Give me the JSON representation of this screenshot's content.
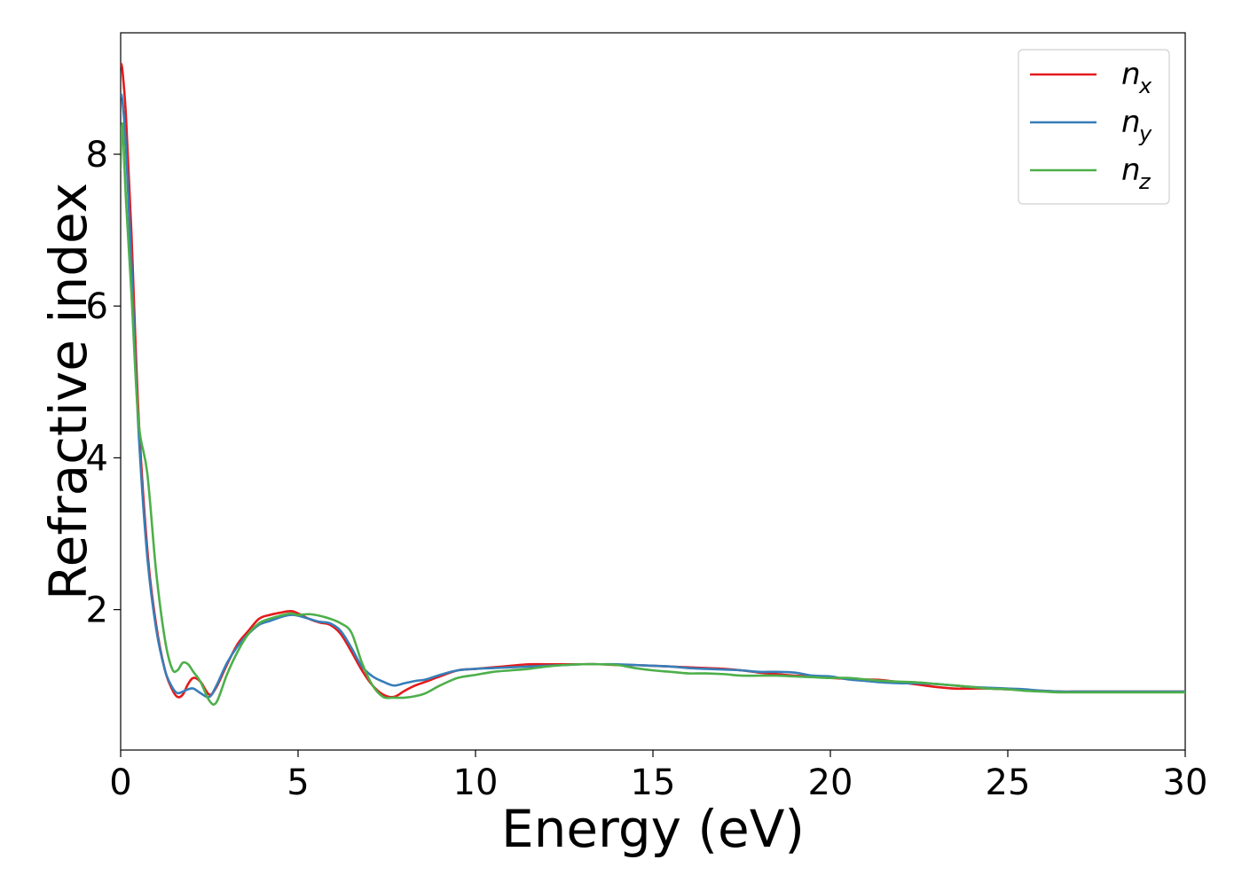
{
  "chart_data": {
    "type": "line",
    "title": "",
    "xlabel": "Energy (eV)",
    "ylabel": "Refractive index",
    "xlim": [
      0,
      30
    ],
    "ylim": [
      0.15,
      9.6
    ],
    "xticks": [
      0,
      5,
      10,
      15,
      20,
      25,
      30
    ],
    "xtick_labels": [
      "0",
      "5",
      "10",
      "15",
      "20",
      "25",
      "30"
    ],
    "yticks": [
      2,
      4,
      6,
      8
    ],
    "ytick_labels": [
      "2",
      "4",
      "6",
      "8"
    ],
    "grid": false,
    "legend_position": "top-right",
    "series": [
      {
        "name": "n_x",
        "legend_base": "n",
        "legend_sub": "x",
        "color": "#e41a1c",
        "x": [
          0,
          0.05,
          0.15,
          0.3,
          0.5,
          0.75,
          1.0,
          1.25,
          1.45,
          1.6,
          1.75,
          1.9,
          2.05,
          2.25,
          2.5,
          2.7,
          3.0,
          3.3,
          3.6,
          3.9,
          4.2,
          4.5,
          4.8,
          5.0,
          5.3,
          5.6,
          5.9,
          6.2,
          6.5,
          6.8,
          7.1,
          7.4,
          7.7,
          8.0,
          8.3,
          8.6,
          9.0,
          9.5,
          10.0,
          10.5,
          11.0,
          11.5,
          12.0,
          12.5,
          13.0,
          13.5,
          14.0,
          14.5,
          15.0,
          15.5,
          16.0,
          16.5,
          17.0,
          17.5,
          18.0,
          18.5,
          19.0,
          19.5,
          20.0,
          20.5,
          21.0,
          21.5,
          22.0,
          22.5,
          23.0,
          23.5,
          24.0,
          24.5,
          25.0,
          25.5,
          26.0,
          26.5,
          27.0,
          27.5,
          28.0,
          28.5,
          29.0,
          29.5,
          30.0
        ],
        "y": [
          9.2,
          9.1,
          8.5,
          7.0,
          4.6,
          2.8,
          1.8,
          1.2,
          0.95,
          0.85,
          0.88,
          1.02,
          1.1,
          1.05,
          0.88,
          0.98,
          1.28,
          1.55,
          1.72,
          1.88,
          1.93,
          1.96,
          1.98,
          1.95,
          1.88,
          1.83,
          1.8,
          1.68,
          1.45,
          1.2,
          1.0,
          0.88,
          0.85,
          0.93,
          1.0,
          1.05,
          1.12,
          1.2,
          1.22,
          1.24,
          1.26,
          1.28,
          1.28,
          1.28,
          1.28,
          1.28,
          1.27,
          1.27,
          1.26,
          1.25,
          1.24,
          1.23,
          1.22,
          1.2,
          1.17,
          1.15,
          1.13,
          1.12,
          1.1,
          1.09,
          1.08,
          1.07,
          1.04,
          1.01,
          0.98,
          0.96,
          0.96,
          0.96,
          0.95,
          0.94,
          0.93,
          0.92,
          0.92,
          0.92,
          0.92,
          0.92,
          0.92,
          0.92,
          0.92
        ]
      },
      {
        "name": "n_y",
        "legend_base": "n",
        "legend_sub": "y",
        "color": "#377eb8",
        "x": [
          0,
          0.05,
          0.15,
          0.3,
          0.5,
          0.75,
          1.0,
          1.25,
          1.45,
          1.6,
          1.75,
          1.9,
          2.05,
          2.25,
          2.5,
          2.7,
          3.0,
          3.3,
          3.6,
          3.9,
          4.2,
          4.5,
          4.8,
          5.0,
          5.3,
          5.6,
          5.9,
          6.2,
          6.5,
          6.8,
          7.1,
          7.4,
          7.7,
          8.0,
          8.3,
          8.6,
          9.0,
          9.5,
          10.0,
          10.5,
          11.0,
          11.5,
          12.0,
          12.5,
          13.0,
          13.5,
          14.0,
          14.5,
          15.0,
          15.5,
          16.0,
          16.5,
          17.0,
          17.5,
          18.0,
          18.5,
          19.0,
          19.5,
          20.0,
          20.5,
          21.0,
          21.5,
          22.0,
          22.5,
          23.0,
          23.5,
          24.0,
          24.5,
          25.0,
          25.5,
          26.0,
          26.5,
          27.0,
          27.5,
          28.0,
          28.5,
          29.0,
          29.5,
          30.0
        ],
        "y": [
          8.8,
          8.7,
          8.1,
          6.6,
          4.4,
          2.7,
          1.75,
          1.2,
          0.98,
          0.9,
          0.92,
          0.95,
          0.96,
          0.9,
          0.85,
          1.0,
          1.3,
          1.52,
          1.68,
          1.8,
          1.85,
          1.9,
          1.93,
          1.92,
          1.88,
          1.84,
          1.82,
          1.72,
          1.5,
          1.25,
          1.12,
          1.05,
          1.0,
          1.03,
          1.06,
          1.08,
          1.14,
          1.2,
          1.22,
          1.23,
          1.24,
          1.25,
          1.26,
          1.27,
          1.28,
          1.28,
          1.28,
          1.27,
          1.26,
          1.25,
          1.23,
          1.22,
          1.21,
          1.2,
          1.18,
          1.18,
          1.17,
          1.13,
          1.12,
          1.08,
          1.06,
          1.04,
          1.03,
          1.03,
          1.02,
          1.0,
          0.98,
          0.97,
          0.96,
          0.95,
          0.93,
          0.92,
          0.92,
          0.92,
          0.92,
          0.92,
          0.92,
          0.92,
          0.92
        ]
      },
      {
        "name": "n_z",
        "legend_base": "n",
        "legend_sub": "z",
        "color": "#4daf4a",
        "x": [
          0,
          0.05,
          0.15,
          0.3,
          0.5,
          0.75,
          1.0,
          1.25,
          1.45,
          1.6,
          1.75,
          1.9,
          2.05,
          2.25,
          2.5,
          2.7,
          3.0,
          3.3,
          3.6,
          3.9,
          4.2,
          4.5,
          4.8,
          5.0,
          5.3,
          5.6,
          5.9,
          6.2,
          6.5,
          6.8,
          7.1,
          7.4,
          7.7,
          8.0,
          8.3,
          8.6,
          9.0,
          9.5,
          10.0,
          10.5,
          11.0,
          11.5,
          12.0,
          12.5,
          13.0,
          13.5,
          14.0,
          14.5,
          15.0,
          15.5,
          16.0,
          16.5,
          17.0,
          17.5,
          18.0,
          18.5,
          19.0,
          19.5,
          20.0,
          20.5,
          21.0,
          21.5,
          22.0,
          22.5,
          23.0,
          23.5,
          24.0,
          24.5,
          25.0,
          25.5,
          26.0,
          26.5,
          27.0,
          27.5,
          28.0,
          28.5,
          29.0,
          29.5,
          30.0
        ],
        "y": [
          7.8,
          8.4,
          7.4,
          6.2,
          4.5,
          3.8,
          2.5,
          1.6,
          1.22,
          1.2,
          1.3,
          1.28,
          1.18,
          1.05,
          0.8,
          0.78,
          1.15,
          1.45,
          1.68,
          1.82,
          1.88,
          1.92,
          1.95,
          1.93,
          1.94,
          1.92,
          1.88,
          1.82,
          1.7,
          1.3,
          1.0,
          0.85,
          0.84,
          0.84,
          0.86,
          0.9,
          1.0,
          1.1,
          1.14,
          1.18,
          1.2,
          1.22,
          1.25,
          1.27,
          1.28,
          1.28,
          1.27,
          1.23,
          1.2,
          1.18,
          1.16,
          1.16,
          1.15,
          1.13,
          1.13,
          1.13,
          1.12,
          1.11,
          1.1,
          1.1,
          1.08,
          1.06,
          1.05,
          1.04,
          1.02,
          1.0,
          0.98,
          0.96,
          0.95,
          0.93,
          0.92,
          0.91,
          0.91,
          0.91,
          0.91,
          0.91,
          0.91,
          0.91,
          0.91
        ]
      }
    ]
  }
}
